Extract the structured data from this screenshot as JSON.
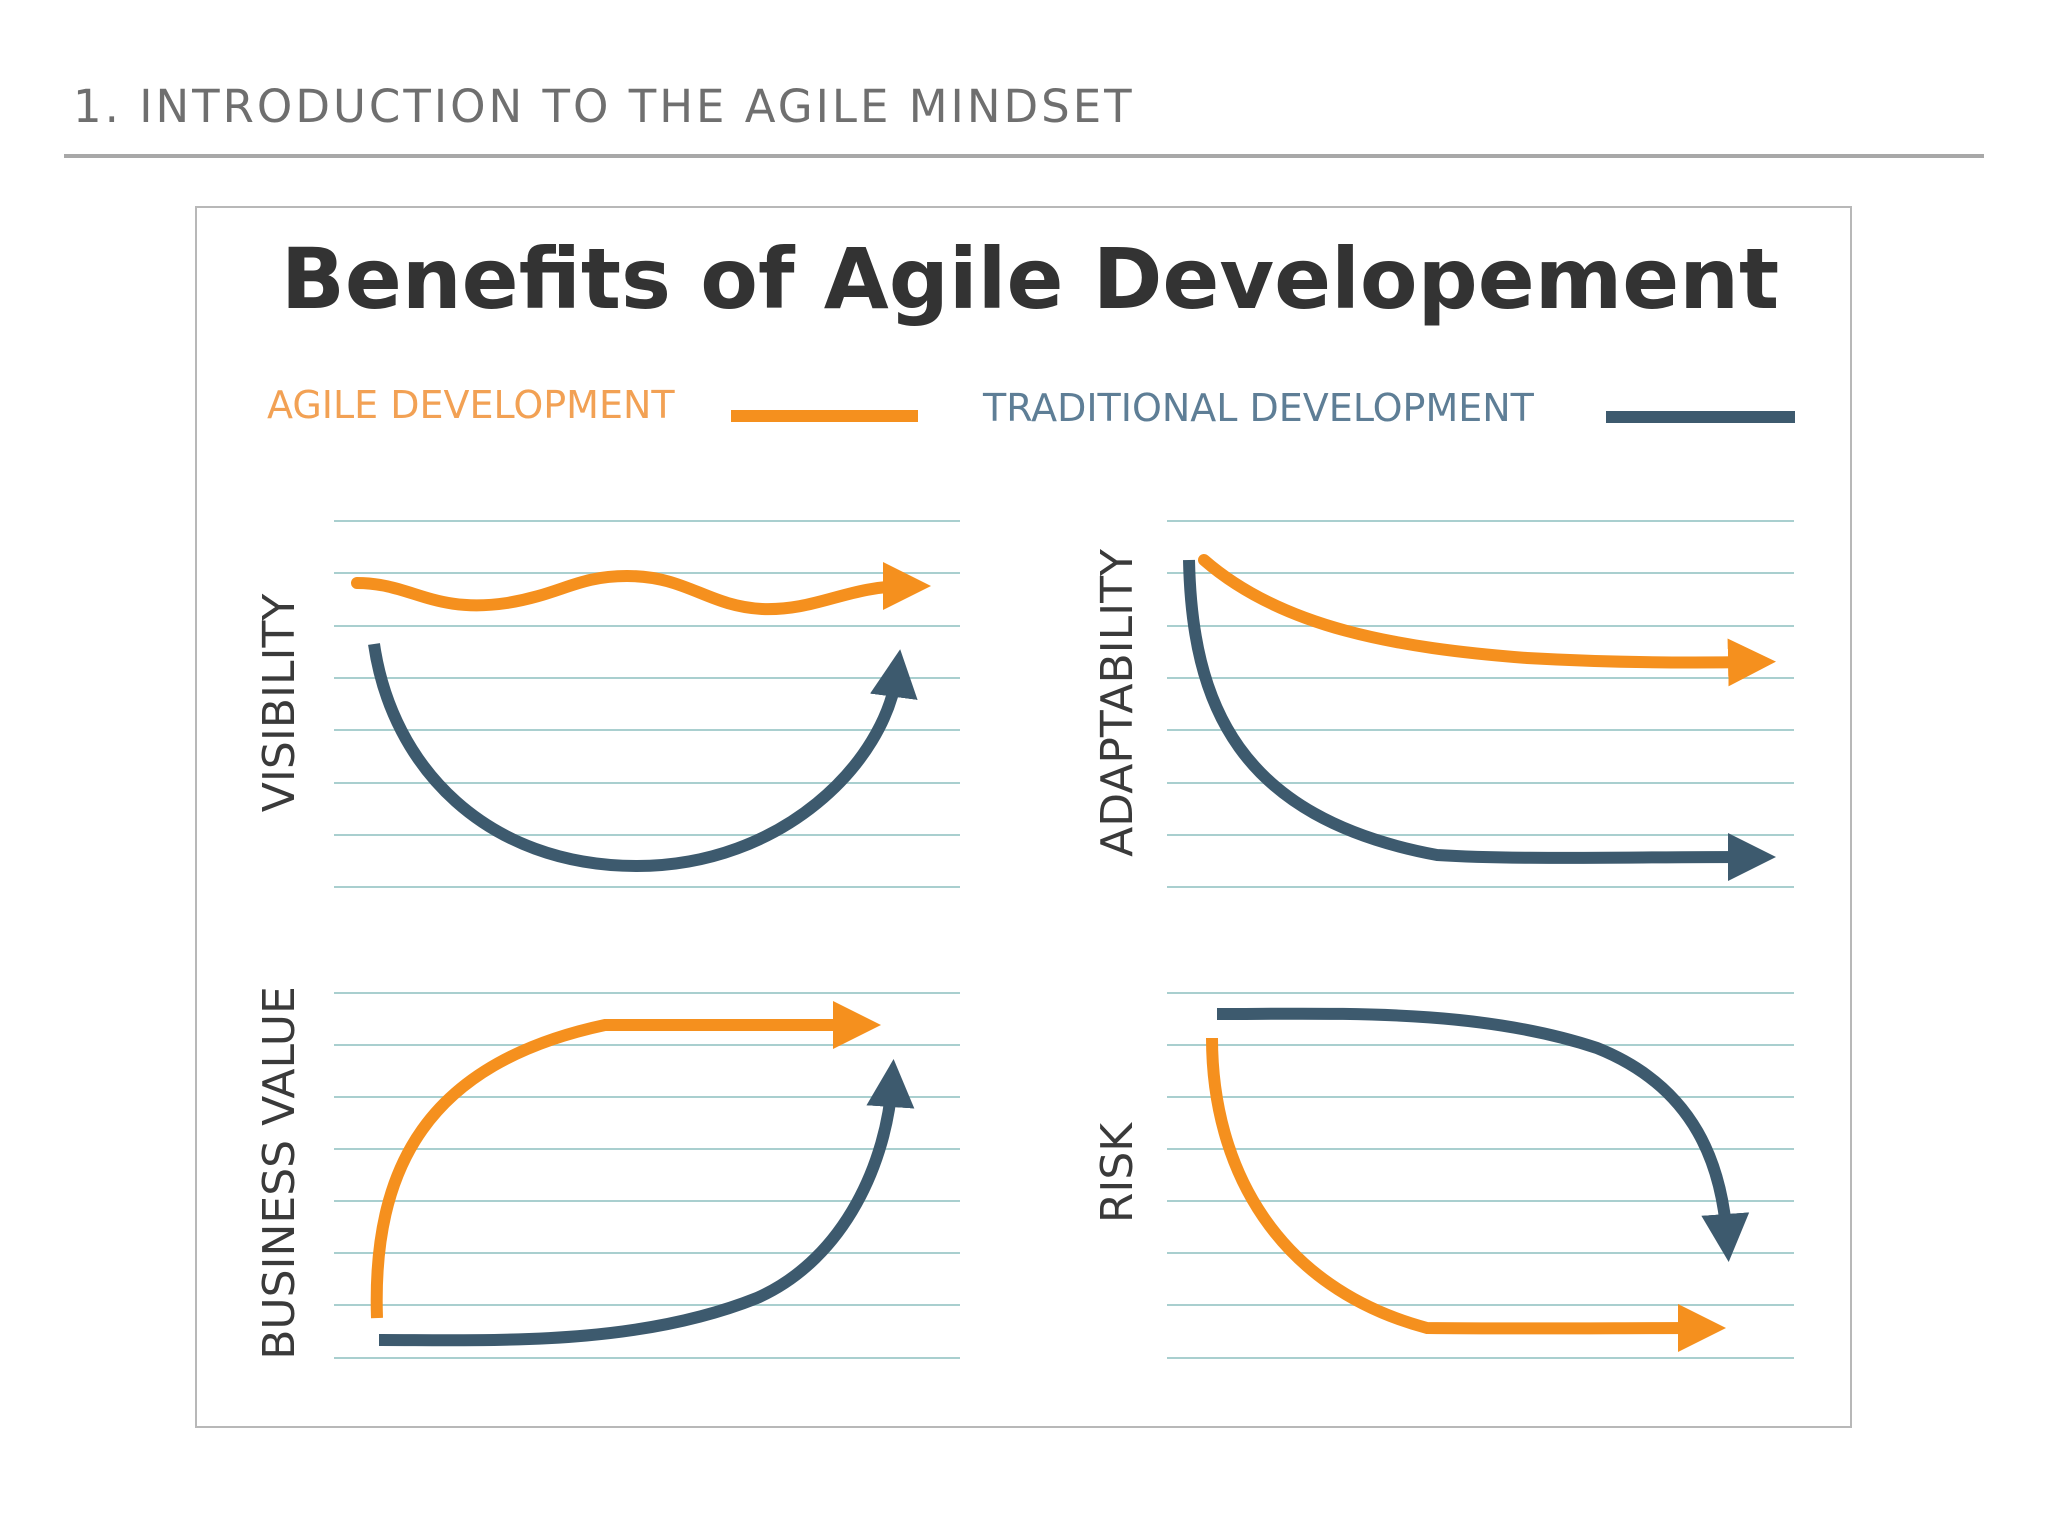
{
  "header": {
    "title": "1. INTRODUCTION TO THE AGILE MINDSET"
  },
  "figure": {
    "title": "Benefits of Agile Developement",
    "legend": {
      "agile_label": "AGILE DEVELOPMENT",
      "traditional_label": "TRADITIONAL DEVELOPMENT"
    },
    "colors": {
      "agile": "#f5901e",
      "traditional": "#3d5a6e",
      "title": "#333333",
      "agile_text": "#f2a154",
      "traditional_text": "#5e7e96",
      "gridline": "#a9cfcf"
    },
    "panels": [
      {
        "id": "visibility",
        "label": "VISIBILITY"
      },
      {
        "id": "adaptability",
        "label": "ADAPTABILITY"
      },
      {
        "id": "business-value",
        "label": "BUSINESS VALUE"
      },
      {
        "id": "risk",
        "label": "RISK"
      }
    ]
  }
}
